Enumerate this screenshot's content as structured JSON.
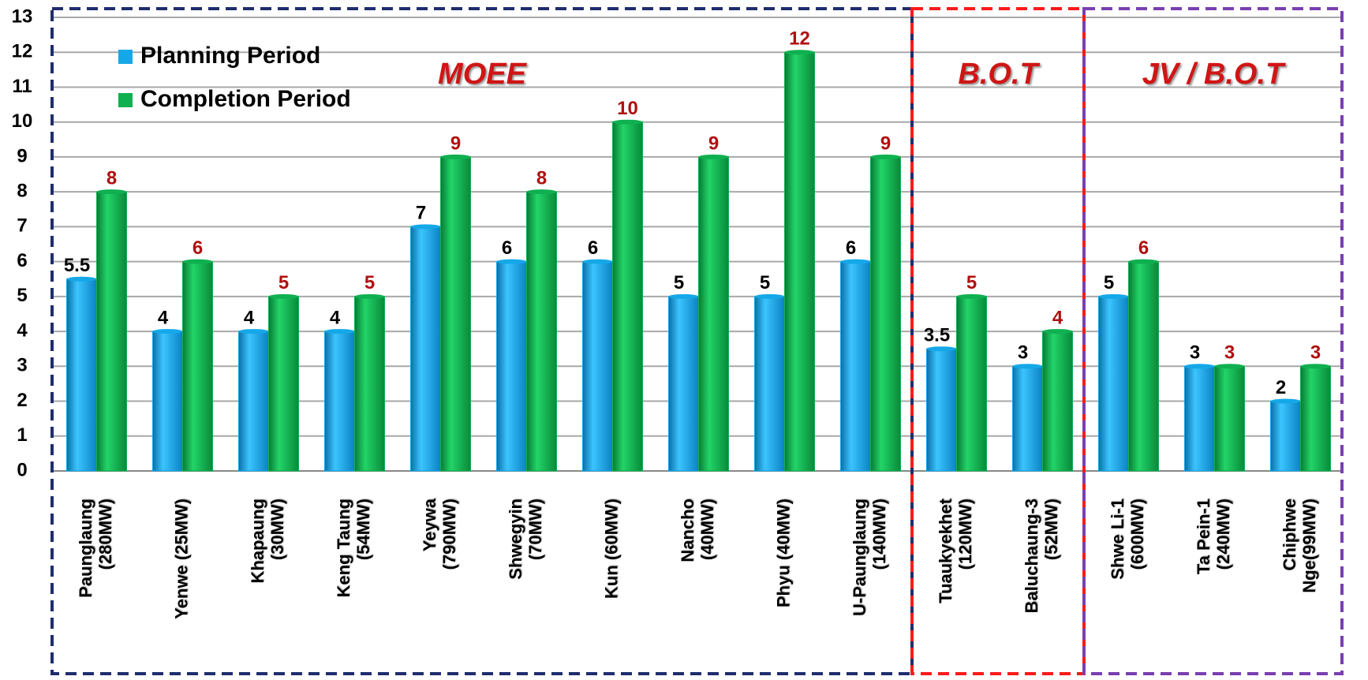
{
  "chart_data": {
    "type": "bar",
    "categories": [
      [
        "Paunglaung",
        "(280MW)"
      ],
      [
        "Yenwe (25MW)"
      ],
      [
        "Khapaung",
        "(30MW)"
      ],
      [
        "Keng Taung",
        "(54MW)"
      ],
      [
        "Yeywa",
        "(790MW)"
      ],
      [
        "Shwegyin",
        "(70MW)"
      ],
      [
        "Kun (60MW)"
      ],
      [
        "Nancho",
        "(40MW)"
      ],
      [
        "Phyu (40MW)"
      ],
      [
        "U-Paunglaung",
        "(140MW)"
      ],
      [
        "Tuaukyekhet",
        "(120MW)"
      ],
      [
        "Baluchaung-3",
        "(52MW)"
      ],
      [
        "Shwe Li-1",
        "(600MW)"
      ],
      [
        "Ta Pein-1",
        "(240MW)"
      ],
      [
        "Chiphwe",
        "Nge(99MW)"
      ]
    ],
    "series": [
      {
        "name": "Planning Period",
        "color": "#14a8e8",
        "label_color": "#000000",
        "values": [
          5.5,
          4,
          4,
          4,
          7,
          6,
          6,
          5,
          5,
          6,
          3.5,
          3,
          5,
          3,
          2
        ]
      },
      {
        "name": "Completion Period",
        "color": "#0fb050",
        "label_color": "#b01010",
        "values": [
          8,
          6,
          5,
          5,
          9,
          8,
          10,
          9,
          12,
          9,
          5,
          4,
          6,
          3,
          3
        ]
      }
    ],
    "groups": [
      {
        "label": "MOEE",
        "span": [
          0,
          9
        ],
        "color": "#1f2d6e"
      },
      {
        "label": "B.O.T",
        "span": [
          10,
          11
        ],
        "color": "#ff1a1a"
      },
      {
        "label": "JV / B.O.T",
        "span": [
          12,
          14
        ],
        "color": "#7a3fb0"
      }
    ],
    "ylim": [
      0,
      13
    ],
    "yticks": [
      0,
      1,
      2,
      3,
      4,
      5,
      6,
      7,
      8,
      9,
      10,
      11,
      12,
      13
    ],
    "grid": true,
    "legend": "upper left"
  }
}
